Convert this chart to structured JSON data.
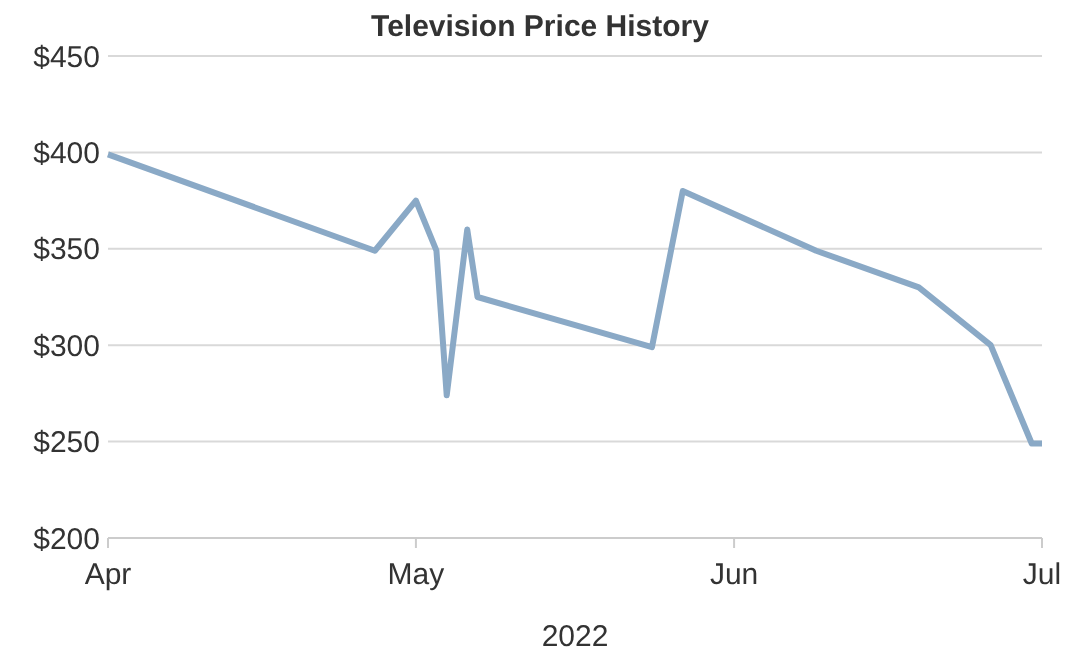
{
  "chart_data": {
    "type": "line",
    "title": "Television Price History",
    "xlabel": "2022",
    "x": [
      "2022-04-01",
      "2022-04-27",
      "2022-05-01",
      "2022-05-03",
      "2022-05-04",
      "2022-05-06",
      "2022-05-07",
      "2022-05-24",
      "2022-05-27",
      "2022-06-09",
      "2022-06-19",
      "2022-06-26",
      "2022-06-30",
      "2022-07-01"
    ],
    "series": [
      {
        "color": "#8aa9c6",
        "values": [
          399,
          349,
          375,
          349,
          274,
          360,
          325,
          299,
          380,
          349,
          330,
          300,
          249,
          249
        ]
      }
    ],
    "xlim": [
      "2022-04-01",
      "2022-07-01"
    ],
    "xticks": [
      {
        "value": "2022-04-01",
        "label": "Apr"
      },
      {
        "value": "2022-05-01",
        "label": "May"
      },
      {
        "value": "2022-06-01",
        "label": "Jun"
      },
      {
        "value": "2022-07-01",
        "label": "Jul"
      }
    ],
    "ylim": [
      200,
      450
    ],
    "yticks": [
      {
        "value": 200,
        "label": "$200"
      },
      {
        "value": 250,
        "label": "$250"
      },
      {
        "value": 300,
        "label": "$300"
      },
      {
        "value": 350,
        "label": "$350"
      },
      {
        "value": 400,
        "label": "$400"
      },
      {
        "value": 450,
        "label": "$450"
      }
    ],
    "grid": "y",
    "marker": "none",
    "line_style": "solid"
  }
}
